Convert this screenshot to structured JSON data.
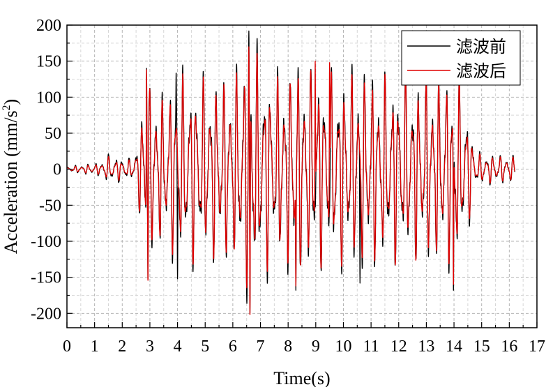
{
  "chart_data": {
    "type": "line",
    "title": "",
    "xlabel": "Time(s)",
    "ylabel_main": "Acceleration (mm/s",
    "ylabel_sup": "2",
    "ylabel_end": ")",
    "xlim": [
      0,
      17
    ],
    "ylim": [
      -220,
      200
    ],
    "xticks": [
      0,
      1,
      2,
      3,
      4,
      5,
      6,
      7,
      8,
      9,
      10,
      11,
      12,
      13,
      14,
      15,
      16,
      17
    ],
    "yticks": [
      -200,
      -150,
      -100,
      -50,
      0,
      50,
      100,
      150,
      200
    ],
    "grid": true,
    "legend_position": "top-right",
    "duration_s": 16.2,
    "series": [
      {
        "name": "滤波前",
        "color": "#000000",
        "envelope": {
          "t": [
            0,
            1.2,
            1.5,
            2.4,
            2.6,
            2.9,
            3.5,
            4.0,
            5.0,
            6.0,
            6.6,
            7.5,
            8.3,
            9.5,
            10.5,
            11.5,
            12.5,
            13.5,
            14.1,
            14.4,
            14.8,
            16.2
          ],
          "amp": [
            4,
            10,
            22,
            15,
            60,
            130,
            110,
            140,
            135,
            140,
            190,
            135,
            160,
            140,
            150,
            140,
            135,
            140,
            145,
            110,
            25,
            20
          ]
        },
        "extremes": [
          {
            "t": 2.88,
            "v": 140
          },
          {
            "t": 2.93,
            "v": -155
          },
          {
            "t": 3.95,
            "v": 135
          },
          {
            "t": 4.0,
            "v": -152
          },
          {
            "t": 6.58,
            "v": 192
          },
          {
            "t": 6.62,
            "v": -200
          },
          {
            "t": 8.28,
            "v": -168
          },
          {
            "t": 10.6,
            "v": -158
          },
          {
            "t": 13.98,
            "v": -168
          }
        ]
      },
      {
        "name": "滤波后",
        "color": "#e00000",
        "envelope": {
          "t": [
            0,
            1.2,
            1.5,
            2.4,
            2.6,
            2.9,
            3.5,
            4.0,
            5.0,
            6.0,
            6.6,
            7.5,
            8.3,
            9.5,
            10.5,
            11.5,
            12.5,
            13.5,
            14.1,
            14.4,
            14.8,
            16.2
          ],
          "amp": [
            3,
            8,
            18,
            12,
            55,
            125,
            105,
            135,
            130,
            135,
            175,
            130,
            150,
            135,
            140,
            135,
            130,
            135,
            140,
            100,
            22,
            18
          ]
        },
        "extremes": [
          {
            "t": 2.88,
            "v": 138
          },
          {
            "t": 2.93,
            "v": -157
          },
          {
            "t": 6.58,
            "v": 170
          },
          {
            "t": 6.62,
            "v": -202
          },
          {
            "t": 8.98,
            "v": 150
          },
          {
            "t": 9.5,
            "v": 148
          },
          {
            "t": 8.28,
            "v": -162
          },
          {
            "t": 13.98,
            "v": -160
          }
        ]
      }
    ]
  }
}
